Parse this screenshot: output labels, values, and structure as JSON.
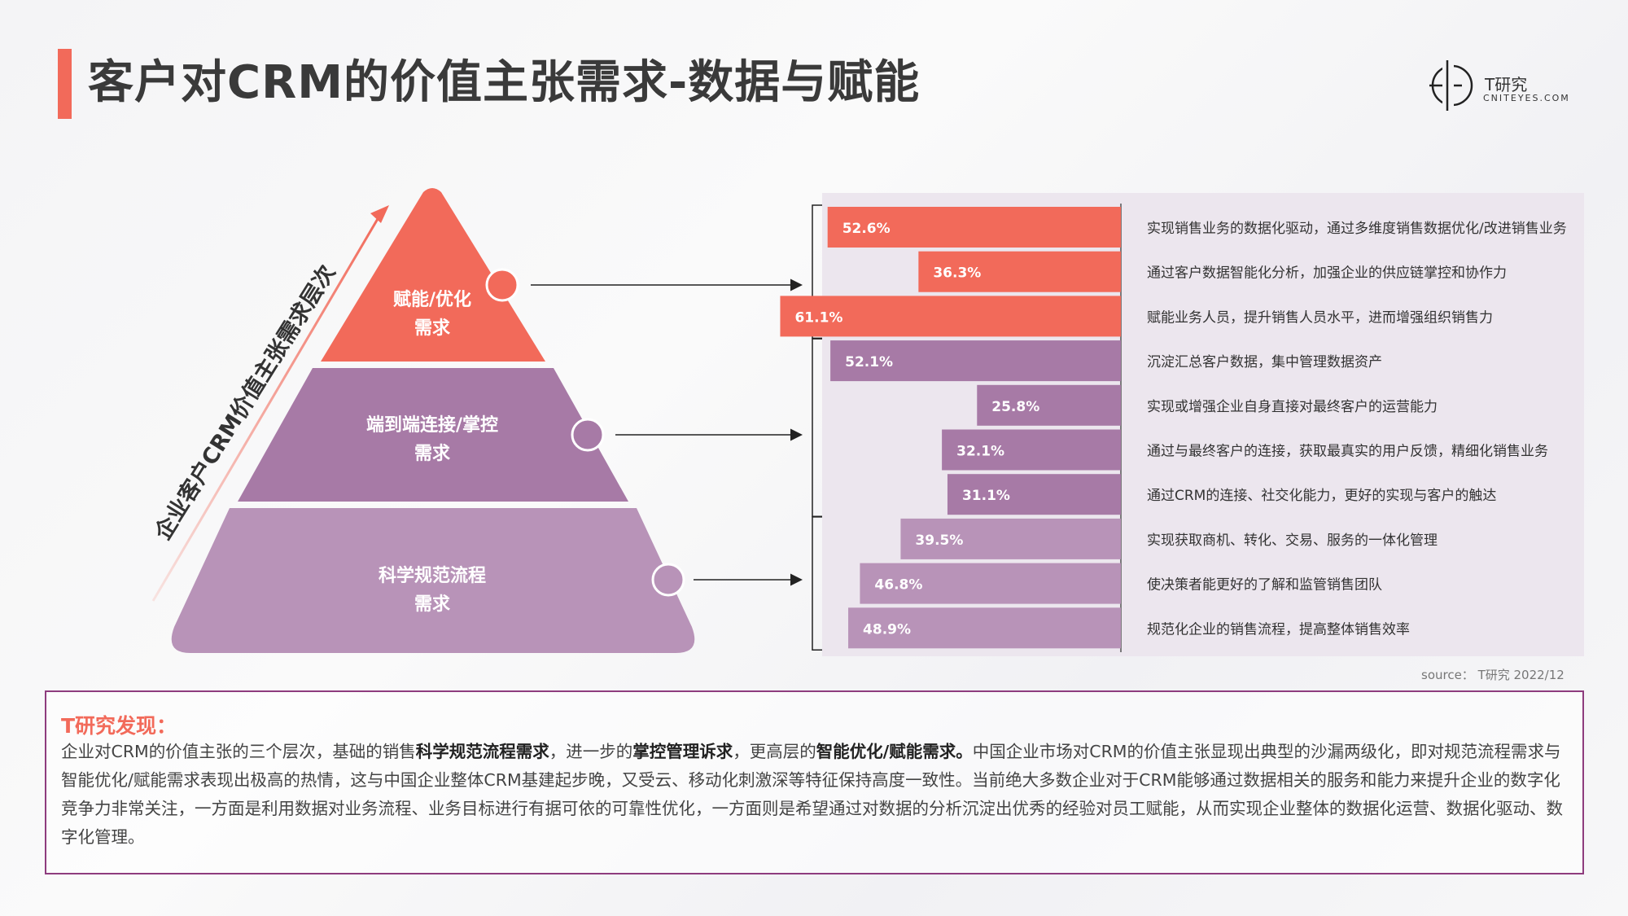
{
  "header": {
    "title": "客户对CRM的价值主张需求-数据与赋能",
    "logo_main": "T研究",
    "logo_sub": "CNITEYES.COM"
  },
  "pyramid": {
    "axis_label": "企业客户CRM价值主张需求层次",
    "levels": [
      {
        "line1": "赋能/优化",
        "line2": "需求",
        "color": "#f26a5a"
      },
      {
        "line1": "端到端连接/掌控",
        "line2": "需求",
        "color": "#a77aa6"
      },
      {
        "line1": "科学规范流程",
        "line2": "需求",
        "color": "#b893b8"
      }
    ]
  },
  "chart_data": {
    "type": "bar",
    "orientation": "horizontal",
    "direction": "right-to-left",
    "categories": [
      "实现销售业务的数据化驱动，通过多维度销售数据优化/改进销售业务",
      "通过客户数据智能化分析，加强企业的供应链掌控和协作力",
      "赋能业务人员，提升销售人员水平，进而增强组织销售力",
      "沉淀汇总客户数据，集中管理数据资产",
      "实现或增强企业自身直接对最终客户的运营能力",
      "通过与最终客户的连接，获取最真实的用户反馈，精细化销售业务",
      "通过CRM的连接、社交化能力，更好的实现与客户的触达",
      "实现获取商机、转化、交易、服务的一体化管理",
      "使决策者能更好的了解和监管销售团队",
      "规范化企业的销售流程，提高整体销售效率"
    ],
    "values": [
      52.6,
      36.3,
      61.1,
      52.1,
      25.8,
      32.1,
      31.1,
      39.5,
      46.8,
      48.9
    ],
    "labels": [
      "52.6%",
      "36.3%",
      "61.1%",
      "52.1%",
      "25.8%",
      "32.1%",
      "31.1%",
      "39.5%",
      "46.8%",
      "48.9%"
    ],
    "groups": [
      0,
      0,
      0,
      1,
      1,
      1,
      1,
      2,
      2,
      2
    ],
    "group_colors": [
      "#f26a5a",
      "#a77aa6",
      "#b893b8"
    ],
    "unit": "%"
  },
  "source": "source： T研究 2022/12",
  "findings": {
    "title": "T研究发现：",
    "segments": [
      {
        "text": "企业对CRM的价值主张的三个层次，基础的销售",
        "bold": false
      },
      {
        "text": "科学规范流程需求",
        "bold": true
      },
      {
        "text": "，进一步的",
        "bold": false
      },
      {
        "text": "掌控管理诉求",
        "bold": true
      },
      {
        "text": "，更高层的",
        "bold": false
      },
      {
        "text": "智能优化/赋能需求。",
        "bold": true
      },
      {
        "text": "中国企业市场对CRM的价值主张显现出典型的沙漏两级化，即对规范流程需求与智能优化/赋能需求表现出极高的热情，这与中国企业整体CRM基建起步晚，又受云、移动化刺激深等特征保持高度一致性。当前绝大多数企业对于CRM能够通过数据相关的服务和能力来提升企业的数字化竞争力非常关注，一方面是利用数据对业务流程、业务目标进行有据可依的可靠性优化，一方面则是希望通过对数据的分析沉淀出优秀的经验对员工赋能，从而实现企业整体的数据化运营、数据化驱动、数字化管理。",
        "bold": false
      }
    ]
  }
}
